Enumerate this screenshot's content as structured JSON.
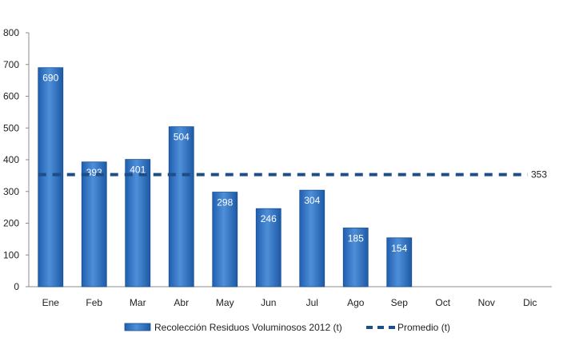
{
  "chart_data": {
    "type": "bar",
    "categories": [
      "Ene",
      "Feb",
      "Mar",
      "Abr",
      "May",
      "Jun",
      "Jul",
      "Ago",
      "Sep",
      "Oct",
      "Nov",
      "Dic"
    ],
    "series": [
      {
        "name": "Recolección Residuos Voluminosos 2012 (t)",
        "type": "bar",
        "color": "#3a78c2",
        "values": [
          690,
          393,
          401,
          504,
          298,
          246,
          304,
          185,
          154,
          null,
          null,
          null
        ]
      },
      {
        "name": "Promedio (t)",
        "type": "line",
        "style": "dashed",
        "color": "#1f4e86",
        "value": 353,
        "label": "353"
      }
    ],
    "ylim": [
      0,
      800
    ],
    "yticks": [
      0,
      100,
      200,
      300,
      400,
      500,
      600,
      700,
      800
    ],
    "grid": false,
    "legend_position": "bottom",
    "title": "",
    "xlabel": "",
    "ylabel": ""
  }
}
